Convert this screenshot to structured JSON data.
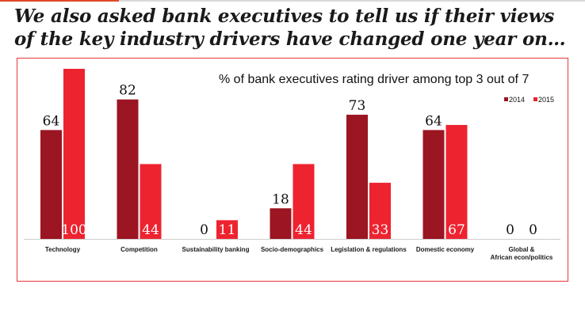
{
  "heading": "We also asked bank executives to tell us if their views of the key industry drivers have changed one year on…",
  "chart_data": {
    "type": "bar",
    "title": "% of bank executives rating driver among top 3 out of 7",
    "categories": [
      "Technology",
      "Competition",
      "Sustainability banking",
      "Socio-demographics",
      "Legislation & regulations",
      "Domestic economy",
      "Global & African econ/politics"
    ],
    "series": [
      {
        "name": "2014",
        "color": "#9b1522",
        "values": [
          64,
          82,
          0,
          18,
          73,
          64,
          0
        ]
      },
      {
        "name": "2015",
        "color": "#ee2330",
        "values": [
          100,
          44,
          11,
          44,
          33,
          67,
          0
        ]
      }
    ],
    "ylim": [
      0,
      100
    ],
    "grid": false,
    "legend": "top-right"
  }
}
